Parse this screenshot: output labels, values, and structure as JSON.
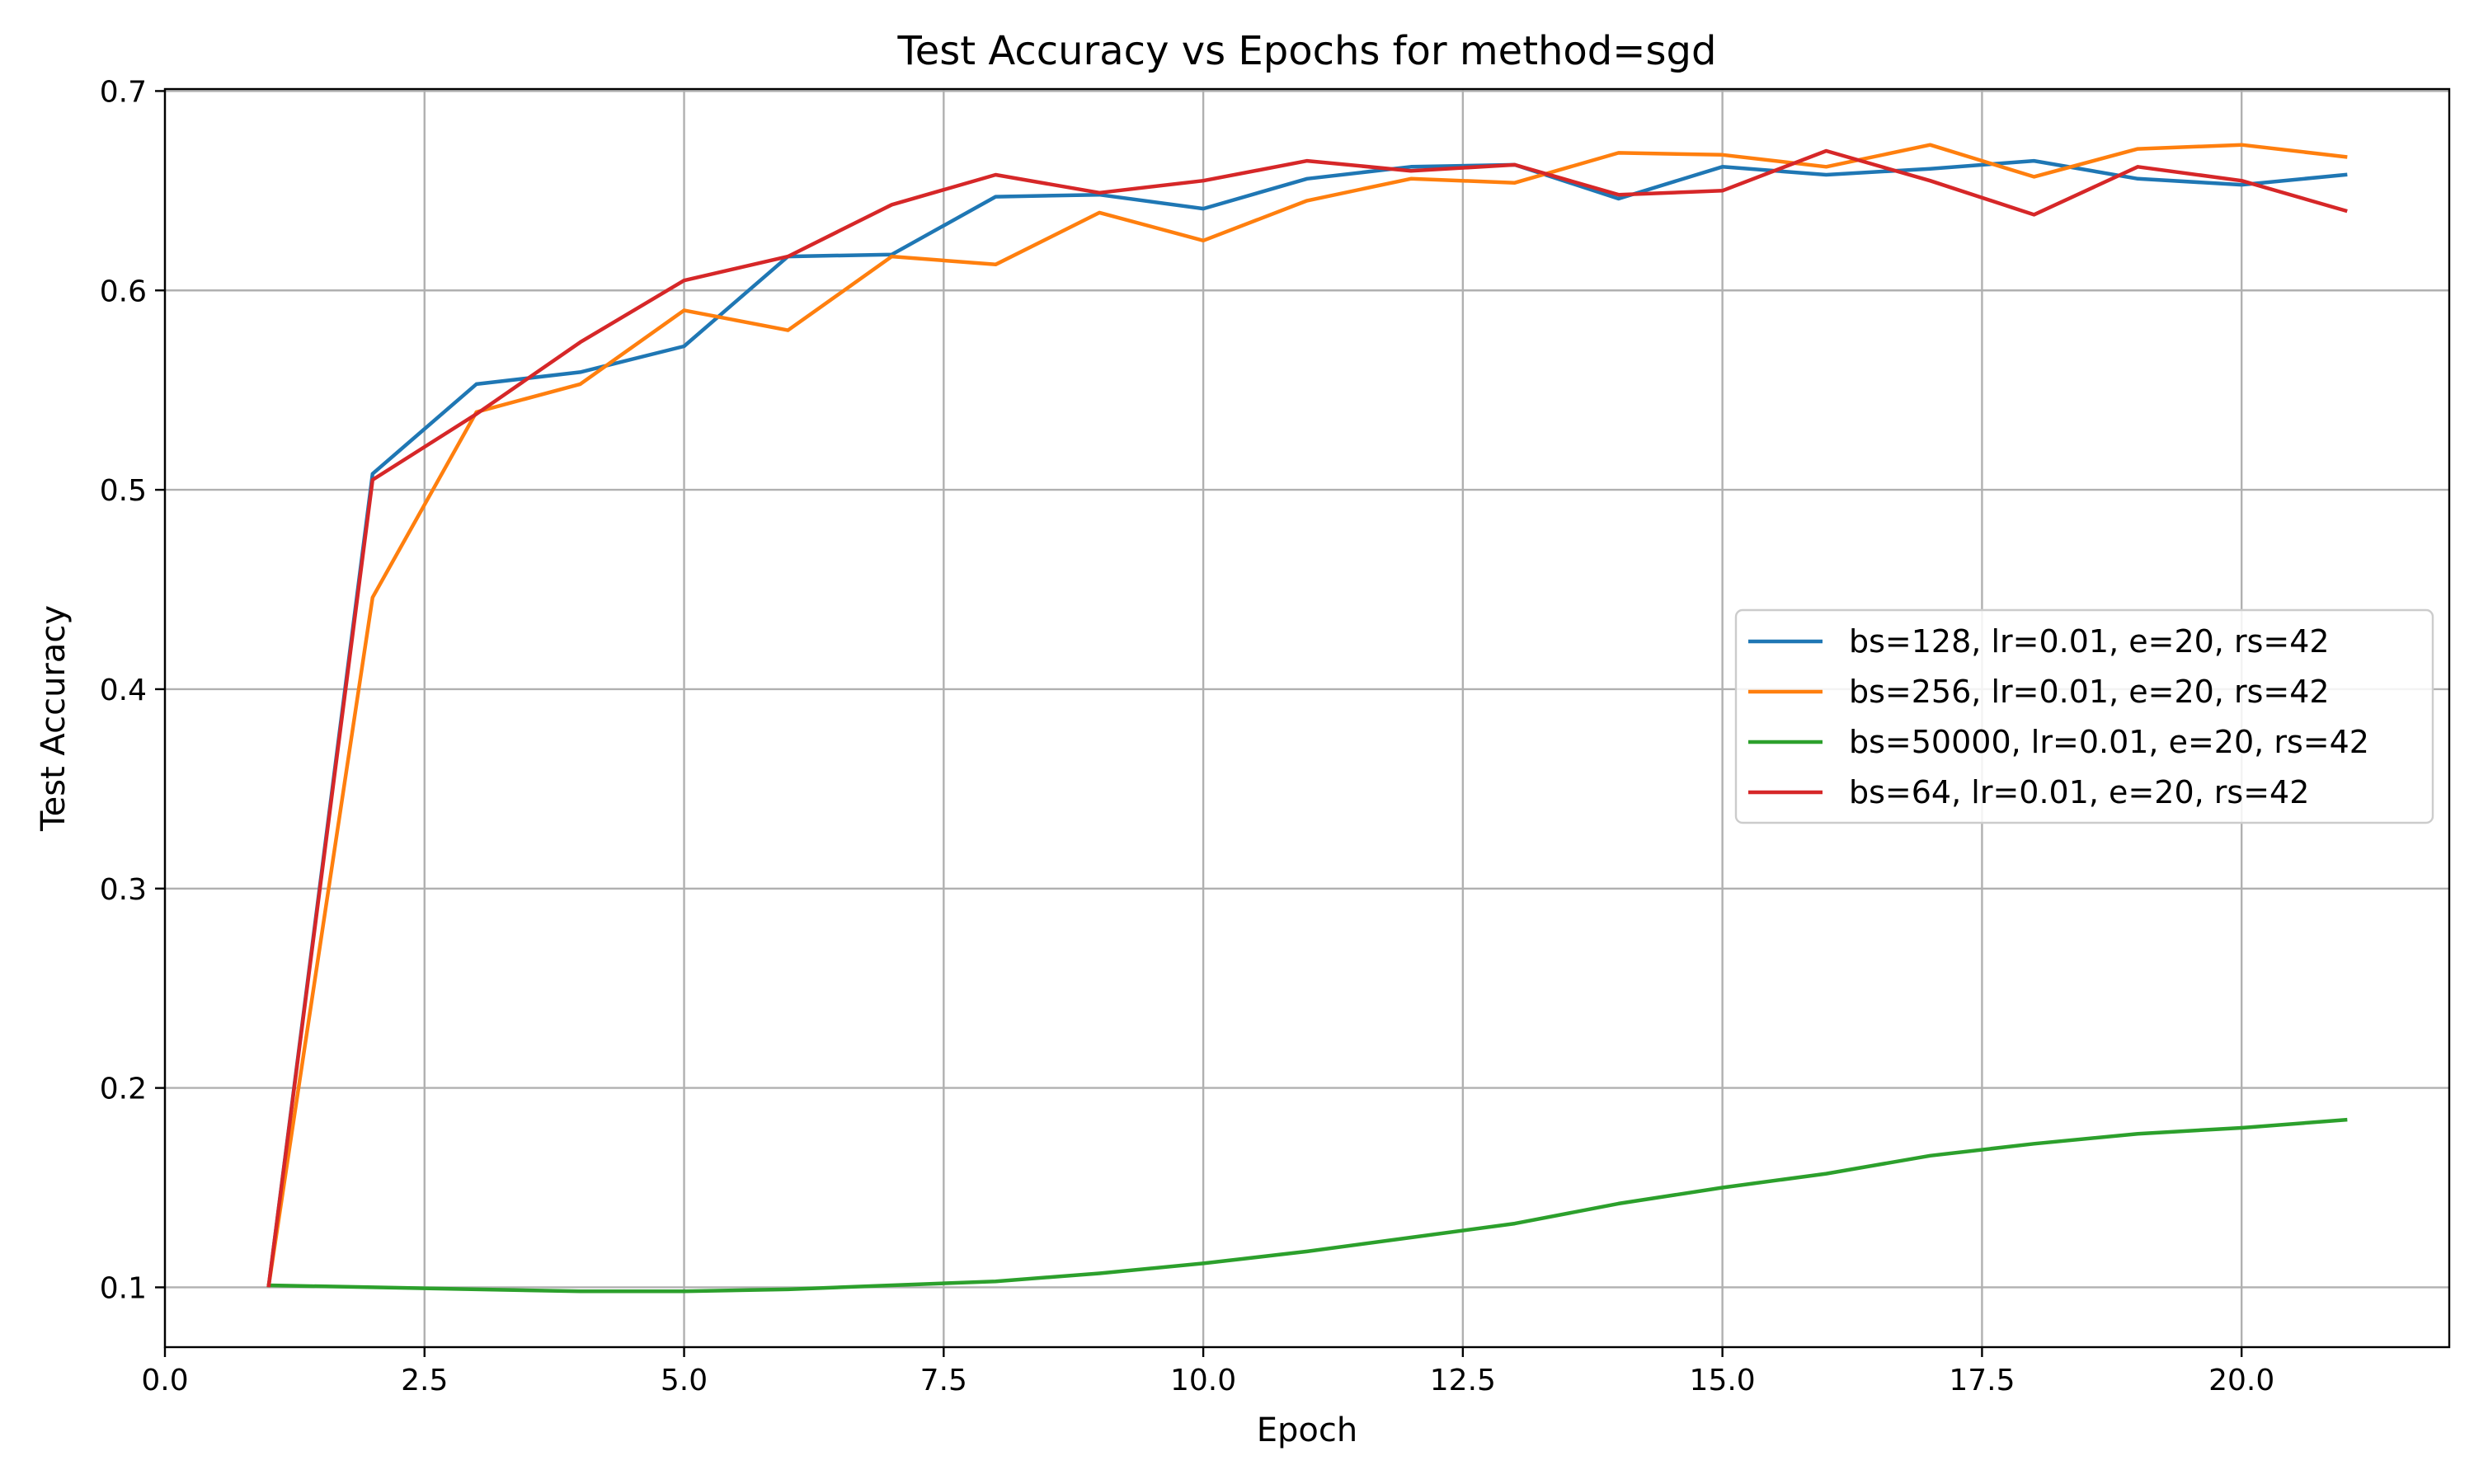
{
  "chart_data": {
    "type": "line",
    "title": "Test Accuracy vs Epochs for method=sgd",
    "xlabel": "Epoch",
    "ylabel": "Test Accuracy",
    "xlim": [
      0,
      22
    ],
    "ylim": [
      0.07,
      0.701
    ],
    "xticks": [
      0.0,
      2.5,
      5.0,
      7.5,
      10.0,
      12.5,
      15.0,
      17.5,
      20.0
    ],
    "xtick_labels": [
      "0.0",
      "2.5",
      "5.0",
      "7.5",
      "10.0",
      "12.5",
      "15.0",
      "17.5",
      "20.0"
    ],
    "yticks": [
      0.1,
      0.2,
      0.3,
      0.4,
      0.5,
      0.6,
      0.7
    ],
    "ytick_labels": [
      "0.1",
      "0.2",
      "0.3",
      "0.4",
      "0.5",
      "0.6",
      "0.7"
    ],
    "grid": true,
    "legend_placement": "center-right",
    "x": [
      1,
      2,
      3,
      4,
      5,
      6,
      7,
      8,
      9,
      10,
      11,
      12,
      13,
      14,
      15,
      16,
      17,
      18,
      19,
      20,
      21
    ],
    "series": [
      {
        "name": "bs=128, lr=0.01, e=20, rs=42",
        "color": "#1f77b4",
        "values": [
          0.101,
          0.508,
          0.553,
          0.559,
          0.572,
          0.617,
          0.618,
          0.647,
          0.648,
          0.641,
          0.656,
          0.662,
          0.663,
          0.646,
          0.662,
          0.658,
          0.661,
          0.665,
          0.656,
          0.653,
          0.658
        ]
      },
      {
        "name": "bs=256, lr=0.01, e=20, rs=42",
        "color": "#ff7f0e",
        "values": [
          0.101,
          0.446,
          0.539,
          0.553,
          0.59,
          0.58,
          0.617,
          0.613,
          0.639,
          0.625,
          0.645,
          0.656,
          0.654,
          0.669,
          0.668,
          0.662,
          0.673,
          0.657,
          0.671,
          0.673,
          0.667
        ]
      },
      {
        "name": "bs=50000, lr=0.01, e=20, rs=42",
        "color": "#2ca02c",
        "values": [
          0.101,
          0.1,
          0.099,
          0.098,
          0.098,
          0.099,
          0.101,
          0.103,
          0.107,
          0.112,
          0.118,
          0.125,
          0.132,
          0.142,
          0.15,
          0.157,
          0.166,
          0.172,
          0.177,
          0.18,
          0.184
        ]
      },
      {
        "name": "bs=64, lr=0.01, e=20, rs=42",
        "color": "#d62728",
        "values": [
          0.101,
          0.505,
          0.538,
          0.574,
          0.605,
          0.617,
          0.643,
          0.658,
          0.649,
          0.655,
          0.665,
          0.66,
          0.663,
          0.648,
          0.65,
          0.67,
          0.655,
          0.638,
          0.662,
          0.655,
          0.64
        ]
      }
    ]
  }
}
